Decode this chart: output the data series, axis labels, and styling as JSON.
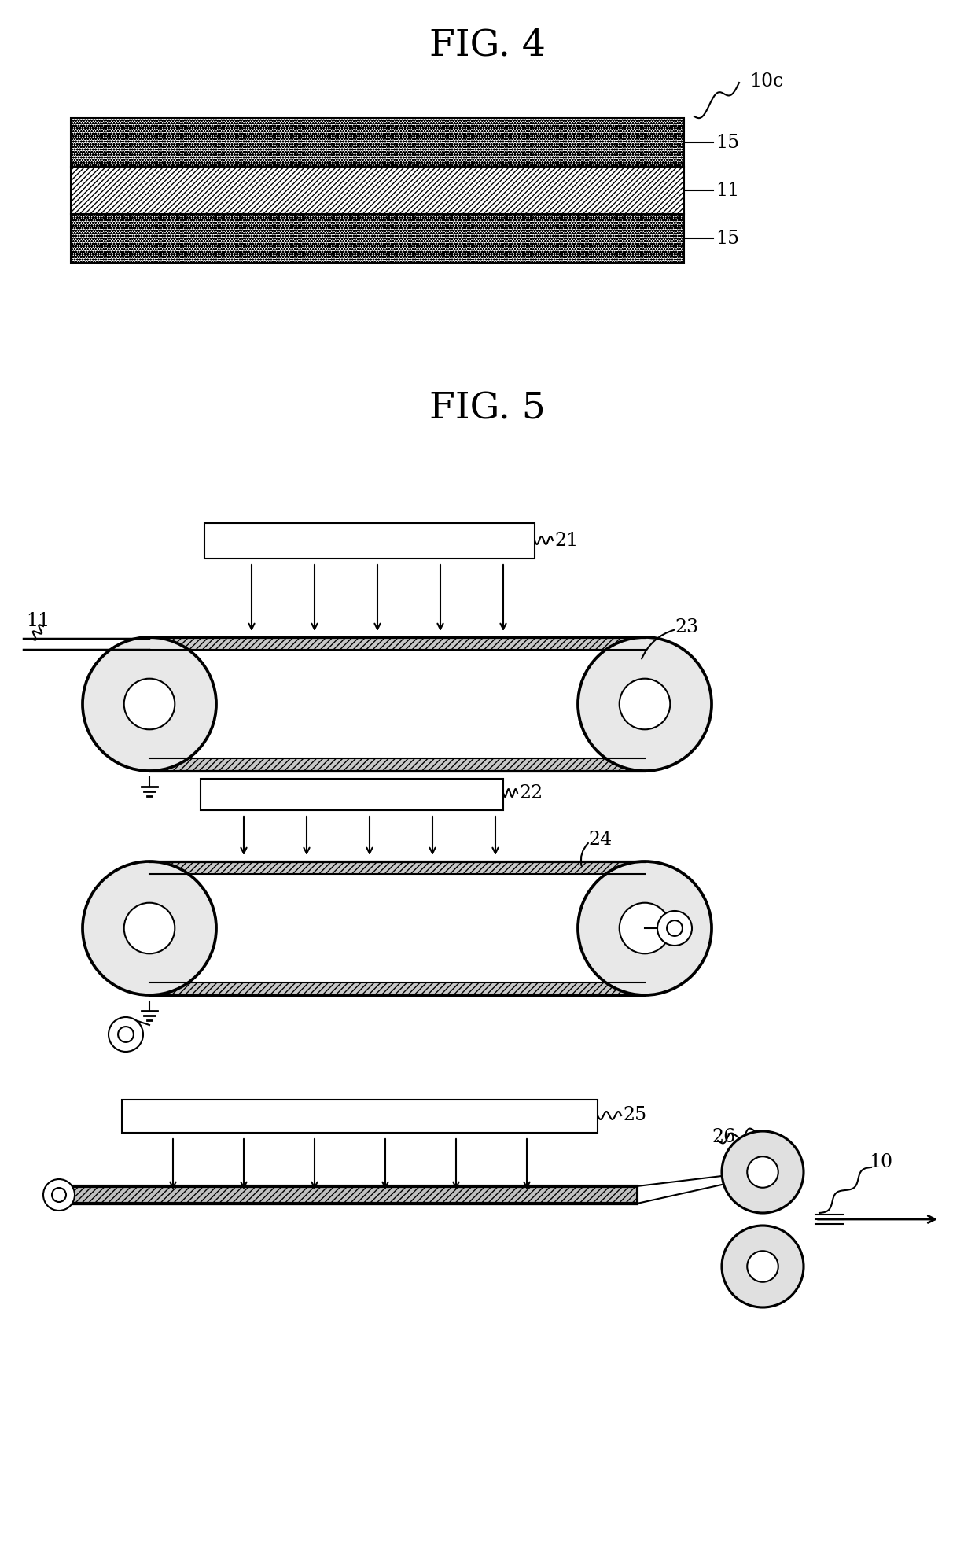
{
  "fig4_title": "FIG. 4",
  "fig5_title": "FIG. 5",
  "label_10c": "10c",
  "label_11_fig4": "11",
  "label_15_top": "15",
  "label_15_bot": "15",
  "label_21": "21",
  "label_22": "22",
  "label_23": "23",
  "label_24": "24",
  "label_25": "25",
  "label_26": "26",
  "label_10": "10",
  "label_11_fig5": "11",
  "bg_color": "#ffffff",
  "line_color": "#000000"
}
